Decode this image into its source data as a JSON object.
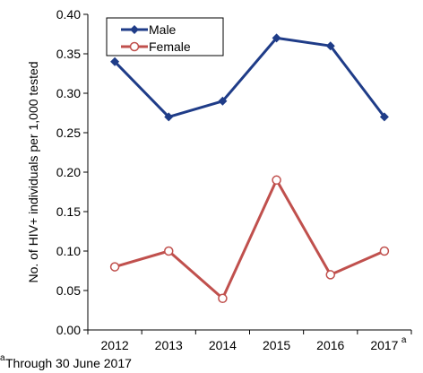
{
  "chart_data": {
    "type": "line",
    "categories": [
      "2012",
      "2013",
      "2014",
      "2015",
      "2016",
      "2017"
    ],
    "category_superscripts": [
      "",
      "",
      "",
      "",
      "",
      "a"
    ],
    "series": [
      {
        "name": "Male",
        "values": [
          0.34,
          0.27,
          0.29,
          0.37,
          0.36,
          0.27
        ],
        "color": "#1f3c88",
        "marker": "filled-diamond"
      },
      {
        "name": "Female",
        "values": [
          0.08,
          0.1,
          0.04,
          0.19,
          0.07,
          0.1
        ],
        "color": "#c0504d",
        "marker": "open-circle"
      }
    ],
    "ylabel": "No. of HIV+ individuals per 1,000 tested",
    "xlabel": "",
    "ylim": [
      0,
      0.4
    ],
    "yticks": [
      "0.00",
      "0.05",
      "0.10",
      "0.15",
      "0.20",
      "0.25",
      "0.30",
      "0.35",
      "0.40"
    ],
    "grid": false,
    "legend_position": "top-left",
    "footnote": {
      "marker": "a",
      "text": "Through 30 June 2017"
    }
  }
}
